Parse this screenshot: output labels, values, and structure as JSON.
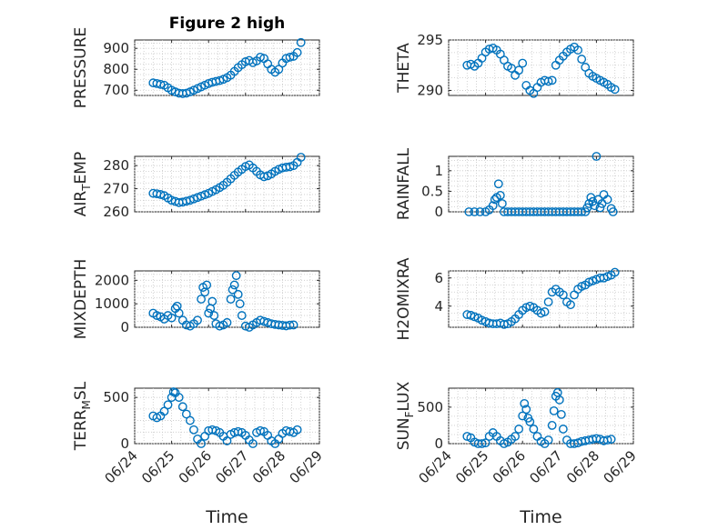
{
  "colors": {
    "marker": "#0072bd",
    "axis": "#262626",
    "grid": "#c8c8c8"
  },
  "chart_data": [
    {
      "type": "scatter",
      "title": "Figure 2 high",
      "ylabel": "PRESSURE",
      "ylabel_sub": "",
      "xlabel": "",
      "ylim": [
        675,
        940
      ],
      "yticks": [
        700,
        800,
        900
      ],
      "yticklabels": [
        "700",
        "800",
        "900"
      ],
      "xlim": [
        "06/24",
        "06/29"
      ],
      "xticklabels": [],
      "grid": true,
      "series": [
        {
          "x": [
            24.5,
            24.6,
            24.7,
            24.8,
            24.9,
            25.0,
            25.1,
            25.2,
            25.3,
            25.4,
            25.5,
            25.6,
            25.7,
            25.8,
            25.9,
            26.0,
            26.1,
            26.2,
            26.3,
            26.4,
            26.5,
            26.6,
            26.7,
            26.8,
            26.9,
            27.0,
            27.1,
            27.2,
            27.3,
            27.4,
            27.5,
            27.6,
            27.7,
            27.8,
            27.9,
            28.0,
            28.1,
            28.2,
            28.3,
            28.4,
            28.5
          ],
          "y": [
            735,
            732,
            728,
            724,
            712,
            700,
            692,
            686,
            684,
            686,
            692,
            700,
            708,
            716,
            724,
            732,
            738,
            742,
            746,
            752,
            760,
            772,
            790,
            808,
            822,
            836,
            842,
            832,
            840,
            858,
            852,
            826,
            800,
            786,
            800,
            830,
            852,
            858,
            862,
            880,
            928
          ]
        }
      ]
    },
    {
      "type": "scatter",
      "title": "",
      "ylabel": "THETA",
      "ylabel_sub": "",
      "xlabel": "",
      "ylim": [
        289.5,
        295
      ],
      "yticks": [
        290,
        295
      ],
      "yticklabels": [
        "290",
        "295"
      ],
      "xlim": [
        "06/24",
        "06/29"
      ],
      "xticklabels": [],
      "grid": true,
      "series": [
        {
          "x": [
            24.5,
            24.6,
            24.7,
            24.8,
            24.9,
            25.0,
            25.1,
            25.2,
            25.3,
            25.4,
            25.5,
            25.6,
            25.7,
            25.8,
            25.9,
            26.0,
            26.1,
            26.2,
            26.3,
            26.4,
            26.5,
            26.6,
            26.7,
            26.8,
            26.9,
            27.0,
            27.1,
            27.2,
            27.3,
            27.4,
            27.5,
            27.6,
            27.7,
            27.8,
            27.9,
            28.0,
            28.1,
            28.2,
            28.3,
            28.4,
            28.5
          ],
          "y": [
            292.5,
            292.6,
            292.4,
            292.7,
            293.2,
            293.8,
            294.1,
            294.2,
            294.0,
            293.6,
            293.0,
            292.4,
            292.2,
            291.5,
            292.0,
            292.7,
            290.5,
            290.0,
            289.7,
            290.3,
            290.8,
            291.0,
            290.9,
            291.0,
            292.5,
            293.0,
            293.4,
            293.8,
            294.1,
            294.3,
            294.0,
            293.1,
            292.3,
            291.7,
            291.4,
            291.2,
            291.0,
            290.8,
            290.6,
            290.3,
            290.1
          ]
        }
      ]
    },
    {
      "type": "scatter",
      "title": "",
      "ylabel": "AIR",
      "ylabel_sub": "T",
      "ylabel_rest": "EMP",
      "xlabel": "",
      "ylim": [
        260,
        284
      ],
      "yticks": [
        260,
        270,
        280
      ],
      "yticklabels": [
        "260",
        "270",
        "280"
      ],
      "xlim": [
        "06/24",
        "06/29"
      ],
      "xticklabels": [],
      "grid": true,
      "series": [
        {
          "x": [
            24.5,
            24.6,
            24.7,
            24.8,
            24.9,
            25.0,
            25.1,
            25.2,
            25.3,
            25.4,
            25.5,
            25.6,
            25.7,
            25.8,
            25.9,
            26.0,
            26.1,
            26.2,
            26.3,
            26.4,
            26.5,
            26.6,
            26.7,
            26.8,
            26.9,
            27.0,
            27.1,
            27.2,
            27.3,
            27.4,
            27.5,
            27.6,
            27.7,
            27.8,
            27.9,
            28.0,
            28.1,
            28.2,
            28.3,
            28.4,
            28.5
          ],
          "y": [
            268,
            267.8,
            267.5,
            267,
            266,
            265,
            264.5,
            264,
            264.2,
            264.6,
            265,
            265.6,
            266.2,
            266.8,
            267.4,
            268,
            268.8,
            269.6,
            270.5,
            271.5,
            272.8,
            274.3,
            275.8,
            277.2,
            278.4,
            279.6,
            280.3,
            279.0,
            277.5,
            276.0,
            275.2,
            275.6,
            276.4,
            277.5,
            278.4,
            279.0,
            279.3,
            279.5,
            280.0,
            281.4,
            283.6
          ]
        }
      ]
    },
    {
      "type": "scatter",
      "title": "",
      "ylabel": "RAINFALL",
      "ylabel_sub": "",
      "xlabel": "",
      "ylim": [
        0,
        1.35
      ],
      "yticks": [
        0,
        0.5,
        1
      ],
      "yticklabels": [
        "0",
        "0.5",
        "1"
      ],
      "xlim": [
        "06/24",
        "06/29"
      ],
      "xticklabels": [],
      "grid": true,
      "series": [
        {
          "x": [
            24.55,
            24.7,
            24.85,
            25.0,
            25.1,
            25.2,
            25.25,
            25.3,
            25.35,
            25.4,
            25.45,
            25.5,
            25.6,
            25.7,
            25.8,
            25.9,
            26.0,
            26.1,
            26.2,
            26.3,
            26.4,
            26.5,
            26.6,
            26.7,
            26.8,
            26.9,
            27.0,
            27.1,
            27.2,
            27.3,
            27.4,
            27.5,
            27.6,
            27.7,
            27.75,
            27.8,
            27.85,
            27.9,
            27.95,
            28.0,
            28.05,
            28.1,
            28.15,
            28.2,
            28.3,
            28.4,
            28.45
          ],
          "y": [
            0,
            0,
            0,
            0,
            0.05,
            0.15,
            0.3,
            0.35,
            0.68,
            0.4,
            0.2,
            0,
            0,
            0,
            0,
            0,
            0,
            0,
            0,
            0,
            0,
            0,
            0,
            0,
            0,
            0,
            0,
            0,
            0,
            0,
            0,
            0,
            0,
            0,
            0.1,
            0.2,
            0.35,
            0.25,
            0.15,
            1.35,
            0.3,
            0.1,
            0.2,
            0.42,
            0.3,
            0.08,
            0
          ]
        }
      ]
    },
    {
      "type": "scatter",
      "title": "",
      "ylabel": "MIXDEPTH",
      "ylabel_sub": "",
      "xlabel": "",
      "ylim": [
        0,
        2400
      ],
      "yticks": [
        0,
        1000,
        2000
      ],
      "yticklabels": [
        "0",
        "1000",
        "2000"
      ],
      "xlim": [
        "06/24",
        "06/29"
      ],
      "xticklabels": [],
      "grid": true,
      "series": [
        {
          "x": [
            24.5,
            24.6,
            24.7,
            24.8,
            24.9,
            25.0,
            25.1,
            25.15,
            25.2,
            25.3,
            25.4,
            25.5,
            25.6,
            25.7,
            25.8,
            25.85,
            25.9,
            25.95,
            26.0,
            26.05,
            26.1,
            26.15,
            26.2,
            26.3,
            26.4,
            26.5,
            26.6,
            26.65,
            26.7,
            26.75,
            26.8,
            26.85,
            26.9,
            27.0,
            27.1,
            27.2,
            27.3,
            27.4,
            27.5,
            27.6,
            27.7,
            27.8,
            27.9,
            28.0,
            28.1,
            28.2,
            28.3
          ],
          "y": [
            600,
            500,
            450,
            350,
            500,
            400,
            800,
            900,
            600,
            300,
            100,
            50,
            150,
            300,
            1200,
            1700,
            1500,
            1800,
            600,
            800,
            1100,
            500,
            150,
            50,
            100,
            200,
            1200,
            1600,
            1800,
            2200,
            1400,
            1000,
            500,
            50,
            0,
            100,
            200,
            300,
            250,
            200,
            150,
            120,
            100,
            80,
            60,
            90,
            100
          ]
        }
      ]
    },
    {
      "type": "scatter",
      "title": "",
      "ylabel": "H2OMIXRA",
      "ylabel_sub": "",
      "xlabel": "",
      "ylim": [
        2.5,
        6.5
      ],
      "yticks": [
        4,
        6
      ],
      "yticklabels": [
        "4",
        "6"
      ],
      "xlim": [
        "06/24",
        "06/29"
      ],
      "xticklabels": [],
      "grid": true,
      "series": [
        {
          "x": [
            24.5,
            24.6,
            24.7,
            24.8,
            24.9,
            25.0,
            25.1,
            25.2,
            25.3,
            25.4,
            25.5,
            25.6,
            25.7,
            25.8,
            25.9,
            26.0,
            26.1,
            26.2,
            26.3,
            26.4,
            26.5,
            26.6,
            26.7,
            26.8,
            26.9,
            27.0,
            27.1,
            27.2,
            27.3,
            27.4,
            27.5,
            27.6,
            27.7,
            27.8,
            27.9,
            28.0,
            28.1,
            28.2,
            28.3,
            28.4,
            28.5
          ],
          "y": [
            3.4,
            3.35,
            3.25,
            3.15,
            3.0,
            2.9,
            2.8,
            2.75,
            2.75,
            2.8,
            2.7,
            2.75,
            2.9,
            3.1,
            3.4,
            3.7,
            3.9,
            4.0,
            3.9,
            3.7,
            3.5,
            3.6,
            4.3,
            5.0,
            5.2,
            5.0,
            4.8,
            4.3,
            4.1,
            4.8,
            5.2,
            5.4,
            5.5,
            5.7,
            5.8,
            5.9,
            6.0,
            6.0,
            6.1,
            6.2,
            6.4
          ]
        }
      ]
    },
    {
      "type": "scatter",
      "title": "",
      "ylabel": "TERR",
      "ylabel_sub": "M",
      "ylabel_rest": "SL",
      "xlabel": "Time",
      "ylim": [
        0,
        600
      ],
      "yticks": [
        0,
        500
      ],
      "yticklabels": [
        "0",
        "500"
      ],
      "xlim": [
        "06/24",
        "06/29"
      ],
      "xticks": [
        24,
        25,
        26,
        27,
        28,
        29
      ],
      "xticklabels": [
        "06/24",
        "06/25",
        "06/26",
        "06/27",
        "06/28",
        "06/29"
      ],
      "grid": true,
      "series": [
        {
          "x": [
            24.5,
            24.6,
            24.7,
            24.8,
            24.9,
            25.0,
            25.05,
            25.1,
            25.2,
            25.3,
            25.4,
            25.5,
            25.6,
            25.7,
            25.8,
            25.9,
            26.0,
            26.1,
            26.2,
            26.3,
            26.4,
            26.5,
            26.6,
            26.7,
            26.8,
            26.9,
            27.0,
            27.1,
            27.2,
            27.3,
            27.4,
            27.5,
            27.6,
            27.7,
            27.8,
            27.9,
            28.0,
            28.1,
            28.2,
            28.3,
            28.4
          ],
          "y": [
            300,
            280,
            300,
            350,
            420,
            500,
            560,
            550,
            500,
            400,
            320,
            250,
            150,
            50,
            0,
            80,
            140,
            150,
            140,
            120,
            80,
            30,
            100,
            120,
            130,
            120,
            90,
            40,
            0,
            120,
            140,
            130,
            90,
            30,
            0,
            50,
            110,
            140,
            130,
            120,
            150
          ]
        }
      ]
    },
    {
      "type": "scatter",
      "title": "",
      "ylabel": "SUN",
      "ylabel_sub": "F",
      "ylabel_rest": "LUX",
      "xlabel": "Time",
      "ylim": [
        0,
        760
      ],
      "yticks": [
        0,
        500
      ],
      "yticklabels": [
        "0",
        "500"
      ],
      "xlim": [
        "06/24",
        "06/29"
      ],
      "xticks": [
        24,
        25,
        26,
        27,
        28,
        29
      ],
      "xticklabels": [
        "06/24",
        "06/25",
        "06/26",
        "06/27",
        "06/28",
        "06/29"
      ],
      "grid": true,
      "series": [
        {
          "x": [
            24.5,
            24.6,
            24.7,
            24.8,
            24.9,
            25.0,
            25.1,
            25.2,
            25.3,
            25.4,
            25.5,
            25.6,
            25.7,
            25.8,
            25.9,
            26.0,
            26.05,
            26.1,
            26.15,
            26.2,
            26.3,
            26.4,
            26.5,
            26.6,
            26.7,
            26.8,
            26.85,
            26.9,
            26.95,
            27.0,
            27.05,
            27.1,
            27.2,
            27.3,
            27.4,
            27.5,
            27.6,
            27.7,
            27.8,
            27.9,
            28.0,
            28.1,
            28.2,
            28.3,
            28.4
          ],
          "y": [
            100,
            80,
            20,
            0,
            0,
            10,
            100,
            150,
            100,
            40,
            0,
            20,
            60,
            100,
            200,
            380,
            550,
            470,
            350,
            300,
            200,
            100,
            30,
            0,
            50,
            250,
            450,
            650,
            700,
            600,
            400,
            200,
            50,
            0,
            0,
            10,
            30,
            40,
            50,
            60,
            70,
            60,
            40,
            50,
            60
          ]
        }
      ]
    }
  ]
}
